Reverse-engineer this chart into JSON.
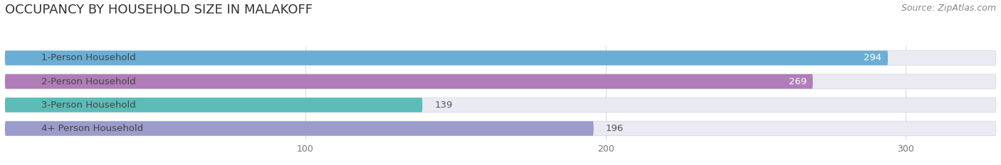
{
  "title": "OCCUPANCY BY HOUSEHOLD SIZE IN MALAKOFF",
  "source": "Source: ZipAtlas.com",
  "categories": [
    "1-Person Household",
    "2-Person Household",
    "3-Person Household",
    "4+ Person Household"
  ],
  "values": [
    294,
    269,
    139,
    196
  ],
  "bar_colors": [
    "#6aaed6",
    "#b07db8",
    "#5bbcb8",
    "#9b9bcc"
  ],
  "bar_bg_color": "#eaebf2",
  "value_label_inside": [
    true,
    true,
    false,
    false
  ],
  "xlim": [
    0,
    330
  ],
  "xticks": [
    100,
    200,
    300
  ],
  "title_fontsize": 13,
  "source_fontsize": 9,
  "label_fontsize": 9.5,
  "tick_fontsize": 9,
  "bar_height": 0.62,
  "fig_width": 14.06,
  "fig_height": 2.33,
  "bg_color": "#ffffff"
}
